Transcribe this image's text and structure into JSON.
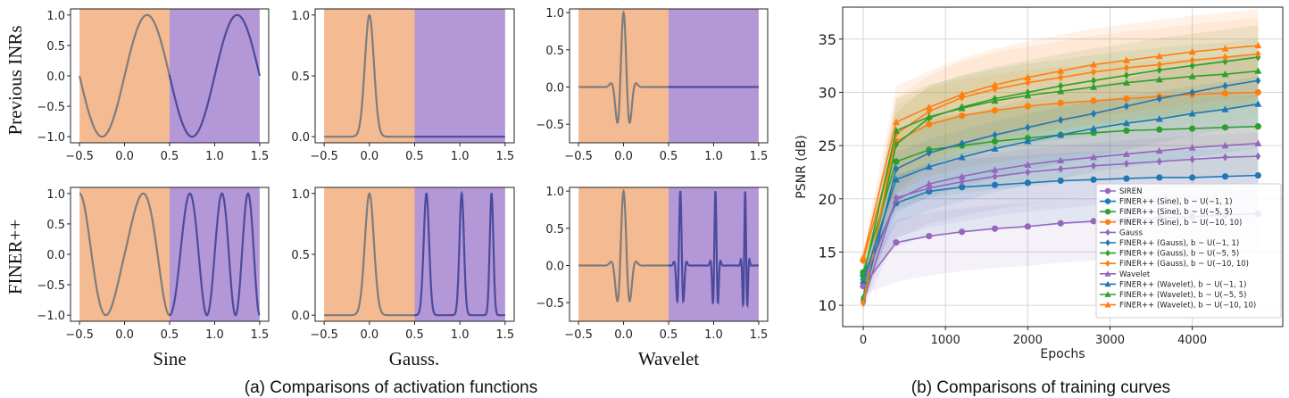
{
  "captions": {
    "a": "(a) Comparisons of activation functions",
    "b": "(b) Comparisons of training curves"
  },
  "row_labels": [
    "Previous INRs",
    "FINER++"
  ],
  "col_labels": [
    "Sine",
    "Gauss.",
    "Wavelet"
  ],
  "colors": {
    "inside_region": "#f4bb93",
    "outside_region": "#b497d6",
    "curve_inside": "#7d7d7d",
    "curve_outside": "#4b4b9e"
  },
  "chart_data": [
    {
      "type": "line",
      "panel": "sine-previous",
      "function": "sin(2*pi*x)",
      "x_range": [
        -0.5,
        1.5
      ],
      "xlim": [
        -0.6,
        1.6
      ],
      "ylim": [
        -1.1,
        1.1
      ],
      "split_x": 0.5,
      "xticks": [
        "−0.5",
        "0.0",
        "0.5",
        "1.0",
        "1.5"
      ],
      "yticks": [
        {
          "v": -1.0,
          "label": "−1.0"
        },
        {
          "v": -0.5,
          "label": "−0.5"
        },
        {
          "v": 0.0,
          "label": "0.0"
        },
        {
          "v": 0.5,
          "label": "0.5"
        },
        {
          "v": 1.0,
          "label": "1.0"
        }
      ]
    },
    {
      "type": "line",
      "panel": "gauss-previous",
      "function": "exp(-x^2/(2*0.05^2))",
      "x_range": [
        -0.5,
        1.5
      ],
      "xlim": [
        -0.6,
        1.6
      ],
      "ylim": [
        -0.05,
        1.05
      ],
      "split_x": 0.5,
      "xticks": [
        "−0.5",
        "0.0",
        "0.5",
        "1.0",
        "1.5"
      ],
      "yticks": [
        {
          "v": 0.0,
          "label": "0.0"
        },
        {
          "v": 0.5,
          "label": "0.5"
        },
        {
          "v": 1.0,
          "label": "1.0"
        }
      ]
    },
    {
      "type": "line",
      "panel": "wavelet-previous",
      "function": "cos(40x)*exp(-x^2/(2*0.06^2))",
      "x_range": [
        -0.5,
        1.5
      ],
      "xlim": [
        -0.6,
        1.6
      ],
      "ylim": [
        -0.75,
        1.05
      ],
      "split_x": 0.5,
      "xticks": [
        "−0.5",
        "0.0",
        "0.5",
        "1.0",
        "1.5"
      ],
      "yticks": [
        {
          "v": -0.5,
          "label": "−0.5"
        },
        {
          "v": 0.0,
          "label": "0.0"
        },
        {
          "v": 0.5,
          "label": "0.5"
        },
        {
          "v": 1.0,
          "label": "1.0"
        }
      ]
    },
    {
      "type": "line",
      "panel": "sine-finer",
      "function": "sin(2*pi*(1+|x|)*x)",
      "x_range": [
        -0.5,
        1.5
      ],
      "xlim": [
        -0.6,
        1.6
      ],
      "ylim": [
        -1.1,
        1.1
      ],
      "split_x": 0.5,
      "xticks": [
        "−0.5",
        "0.0",
        "0.5",
        "1.0",
        "1.5"
      ],
      "yticks": [
        {
          "v": -1.0,
          "label": "−1.0"
        },
        {
          "v": -0.5,
          "label": "−0.5"
        },
        {
          "v": 0.0,
          "label": "0.0"
        },
        {
          "v": 0.5,
          "label": "0.5"
        },
        {
          "v": 1.0,
          "label": "1.0"
        }
      ]
    },
    {
      "type": "line",
      "panel": "gauss-finer",
      "function": "gaussian peaks at 0, 0.63, 1.02, 1.35",
      "x_range": [
        -0.5,
        1.5
      ],
      "xlim": [
        -0.6,
        1.6
      ],
      "ylim": [
        -0.05,
        1.05
      ],
      "split_x": 0.5,
      "xticks": [
        "−0.5",
        "0.0",
        "0.5",
        "1.0",
        "1.5"
      ],
      "yticks": [
        {
          "v": 0.0,
          "label": "0.0"
        },
        {
          "v": 0.5,
          "label": "0.5"
        },
        {
          "v": 1.0,
          "label": "1.0"
        }
      ]
    },
    {
      "type": "line",
      "panel": "wavelet-finer",
      "function": "wavelets at 0, 0.63, 1.02, 1.35",
      "x_range": [
        -0.5,
        1.5
      ],
      "xlim": [
        -0.6,
        1.6
      ],
      "ylim": [
        -0.75,
        1.05
      ],
      "split_x": 0.5,
      "xticks": [
        "−0.5",
        "0.0",
        "0.5",
        "1.0",
        "1.5"
      ],
      "yticks": [
        {
          "v": -0.5,
          "label": "−0.5"
        },
        {
          "v": 0.0,
          "label": "0.0"
        },
        {
          "v": 0.5,
          "label": "0.5"
        },
        {
          "v": 1.0,
          "label": "1.0"
        }
      ]
    },
    {
      "type": "line",
      "panel": "training-curves",
      "xlabel": "Epochs",
      "ylabel": "PSNR (dB)",
      "xlim": [
        -250,
        5100
      ],
      "ylim": [
        8,
        38
      ],
      "xticks": [
        0,
        1000,
        2000,
        3000,
        4000
      ],
      "yticks": [
        10,
        15,
        20,
        25,
        30,
        35
      ],
      "grid": true,
      "legend_position": "lower-right",
      "x": [
        0,
        400,
        800,
        1200,
        1600,
        2000,
        2400,
        2800,
        3200,
        3600,
        4000,
        4400,
        4800
      ],
      "series": [
        {
          "name": "SIREN",
          "color": "#9467bd",
          "marker": "circle",
          "values": [
            11.8,
            15.9,
            16.5,
            16.9,
            17.2,
            17.4,
            17.7,
            17.9,
            18.0,
            18.2,
            18.3,
            18.5,
            18.6
          ]
        },
        {
          "name": "FINER++ (Sine), b ~ U(−1, 1)",
          "color": "#1f77b4",
          "marker": "circle",
          "values": [
            12.8,
            19.6,
            20.7,
            21.1,
            21.3,
            21.5,
            21.7,
            21.8,
            21.9,
            22.0,
            22.0,
            22.1,
            22.2
          ]
        },
        {
          "name": "FINER++ (Sine), b ~ U(−5, 5)",
          "color": "#2ca02c",
          "marker": "circle",
          "values": [
            13.1,
            23.5,
            24.6,
            25.0,
            25.4,
            25.7,
            26.0,
            26.2,
            26.4,
            26.5,
            26.6,
            26.7,
            26.8
          ]
        },
        {
          "name": "FINER++ (Sine), b ~ U(−10, 10)",
          "color": "#ff7f0e",
          "marker": "circle",
          "values": [
            14.2,
            25.4,
            27.0,
            27.8,
            28.3,
            28.7,
            29.0,
            29.2,
            29.4,
            29.6,
            29.8,
            29.9,
            30.0
          ]
        },
        {
          "name": "Gauss",
          "color": "#9467bd",
          "marker": "diamond",
          "values": [
            10.3,
            20.1,
            21.0,
            21.6,
            22.1,
            22.5,
            22.8,
            23.1,
            23.3,
            23.5,
            23.7,
            23.9,
            24.0
          ]
        },
        {
          "name": "FINER++ (Gauss), b ~ U(−1, 1)",
          "color": "#1f77b4",
          "marker": "diamond",
          "values": [
            10.5,
            22.8,
            24.3,
            25.2,
            26.0,
            26.7,
            27.4,
            28.0,
            28.7,
            29.4,
            30.0,
            30.6,
            31.1
          ]
        },
        {
          "name": "FINER++ (Gauss), b ~ U(−5, 5)",
          "color": "#2ca02c",
          "marker": "diamond",
          "values": [
            10.7,
            25.1,
            27.6,
            28.6,
            29.4,
            30.0,
            30.6,
            31.1,
            31.6,
            32.1,
            32.5,
            32.9,
            33.3
          ]
        },
        {
          "name": "FINER++ (Gauss), b ~ U(−10, 10)",
          "color": "#ff7f0e",
          "marker": "diamond",
          "values": [
            10.2,
            26.1,
            28.2,
            29.5,
            30.3,
            30.9,
            31.4,
            31.9,
            32.3,
            32.6,
            33.0,
            33.3,
            33.6
          ]
        },
        {
          "name": "Wavelet",
          "color": "#9467bd",
          "marker": "triangle",
          "values": [
            12.0,
            19.9,
            21.4,
            22.1,
            22.7,
            23.2,
            23.6,
            23.9,
            24.2,
            24.5,
            24.8,
            25.0,
            25.2
          ]
        },
        {
          "name": "FINER++ (Wavelet), b ~ U(−1, 1)",
          "color": "#1f77b4",
          "marker": "triangle",
          "values": [
            12.3,
            21.8,
            23.0,
            23.9,
            24.7,
            25.4,
            26.0,
            26.6,
            27.1,
            27.5,
            28.0,
            28.4,
            28.9
          ]
        },
        {
          "name": "FINER++ (Wavelet), b ~ U(−5, 5)",
          "color": "#2ca02c",
          "marker": "triangle",
          "values": [
            12.6,
            26.4,
            27.7,
            28.5,
            29.2,
            29.7,
            30.1,
            30.5,
            30.9,
            31.2,
            31.5,
            31.7,
            32.0
          ]
        },
        {
          "name": "FINER++ (Wavelet), b ~ U(−10, 10)",
          "color": "#ff7f0e",
          "marker": "triangle",
          "values": [
            14.5,
            27.2,
            28.6,
            29.8,
            30.7,
            31.4,
            32.0,
            32.6,
            33.0,
            33.4,
            33.8,
            34.1,
            34.4
          ]
        }
      ]
    }
  ]
}
